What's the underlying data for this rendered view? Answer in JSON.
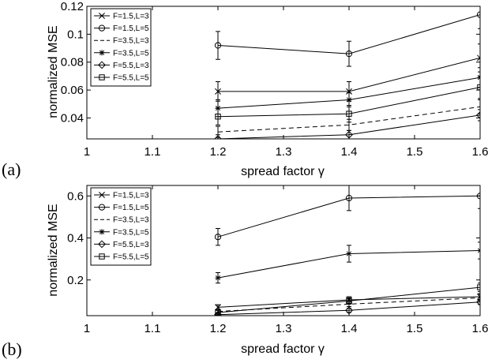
{
  "chart_data": [
    {
      "panel_label": "(a)",
      "type": "line",
      "xlabel": "spread factor γ",
      "ylabel": "normalized MSE",
      "xlim": [
        1,
        1.6
      ],
      "ylim": [
        0.025,
        0.12
      ],
      "xticks": [
        "1",
        "1.1",
        "1.2",
        "1.3",
        "1.4",
        "1.5",
        "1.6"
      ],
      "yticks": [
        "0.04",
        "0.06",
        "0.08",
        "0.1",
        "0.12"
      ],
      "x": [
        1.2,
        1.4,
        1.6
      ],
      "legend_position": "top-left",
      "series": [
        {
          "name": "F=1.5,L=3",
          "marker": "x",
          "dash": false,
          "values": [
            0.059,
            0.059,
            0.083
          ],
          "err": [
            0.007,
            0.007,
            0.01
          ]
        },
        {
          "name": "F=1.5,L=5",
          "marker": "o",
          "dash": false,
          "values": [
            0.092,
            0.086,
            0.114
          ],
          "err": [
            0.01,
            0.009,
            0.01
          ]
        },
        {
          "name": "F=3.5,L=3",
          "marker": "none",
          "dash": true,
          "values": [
            0.03,
            0.035,
            0.048
          ],
          "err": [
            0.004,
            0.004,
            0.005
          ]
        },
        {
          "name": "F=3.5,L=5",
          "marker": "*",
          "dash": false,
          "values": [
            0.047,
            0.053,
            0.069
          ],
          "err": [
            0.006,
            0.005,
            0.007
          ]
        },
        {
          "name": "F=5.5,L=3",
          "marker": "diamond",
          "dash": false,
          "values": [
            0.025,
            0.028,
            0.042
          ],
          "err": [
            0.003,
            0.003,
            0.004
          ]
        },
        {
          "name": "F=5.5,L=5",
          "marker": "square",
          "dash": false,
          "values": [
            0.041,
            0.043,
            0.062
          ],
          "err": [
            0.006,
            0.006,
            0.008
          ]
        }
      ]
    },
    {
      "panel_label": "(b)",
      "type": "line",
      "xlabel": "spread factor γ",
      "ylabel": "normalized MSE",
      "xlim": [
        1,
        1.6
      ],
      "ylim": [
        0.03,
        0.65
      ],
      "xticks": [
        "1",
        "1.1",
        "1.2",
        "1.3",
        "1.4",
        "1.5",
        "1.6"
      ],
      "yticks": [
        "0.2",
        "0.4",
        "0.6"
      ],
      "x": [
        1.2,
        1.4,
        1.6
      ],
      "legend_position": "top-left",
      "series": [
        {
          "name": "F=1.5,L=3",
          "marker": "x",
          "dash": false,
          "values": [
            0.07,
            0.105,
            0.12
          ],
          "err": [
            0.012,
            0.015,
            0.015
          ]
        },
        {
          "name": "F=1.5,L=5",
          "marker": "o",
          "dash": false,
          "values": [
            0.405,
            0.59,
            0.6
          ],
          "err": [
            0.04,
            0.06,
            0.06
          ]
        },
        {
          "name": "F=3.5,L=3",
          "marker": "none",
          "dash": true,
          "values": [
            0.05,
            0.085,
            0.115
          ],
          "err": [
            0.01,
            0.012,
            0.015
          ]
        },
        {
          "name": "F=3.5,L=5",
          "marker": "*",
          "dash": false,
          "values": [
            0.21,
            0.325,
            0.34
          ],
          "err": [
            0.025,
            0.04,
            0.04
          ]
        },
        {
          "name": "F=5.5,L=3",
          "marker": "diamond",
          "dash": false,
          "values": [
            0.035,
            0.055,
            0.095
          ],
          "err": [
            0.008,
            0.01,
            0.012
          ]
        },
        {
          "name": "F=5.5,L=5",
          "marker": "square",
          "dash": false,
          "values": [
            0.045,
            0.1,
            0.165
          ],
          "err": [
            0.01,
            0.015,
            0.02
          ]
        }
      ]
    }
  ]
}
